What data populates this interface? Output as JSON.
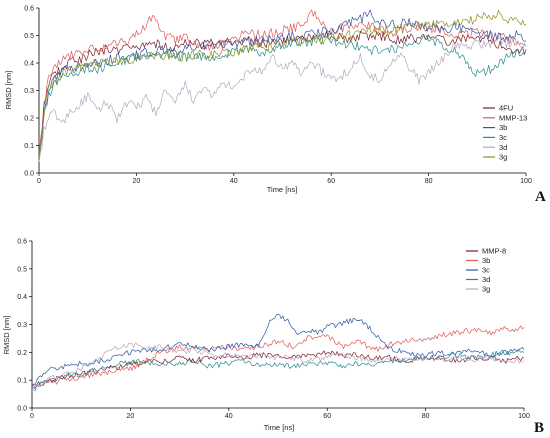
{
  "chart_data": [
    {
      "panel_label": "A",
      "type": "line",
      "xlabel": "Time [ns]",
      "ylabel": "RMSD [nm]",
      "xlim": [
        0,
        100
      ],
      "ylim": [
        0,
        0.6
      ],
      "x_ticks": [
        "0",
        "20",
        "40",
        "60",
        "80",
        "100"
      ],
      "y_ticks": [
        "0.0",
        "0.1",
        "0.2",
        "0.3",
        "0.4",
        "0.5",
        "0.6"
      ],
      "grid": false,
      "legend_position": "right",
      "series": [
        {
          "name": "4FU",
          "color": "#7a1e2c",
          "x": [
            0,
            1,
            2,
            3,
            4,
            5,
            6,
            8,
            10,
            12,
            14,
            16,
            18,
            20,
            22,
            24,
            26,
            28,
            30,
            32,
            35,
            38,
            40,
            43,
            46,
            50,
            53,
            56,
            60,
            63,
            66,
            70,
            73,
            76,
            80,
            83,
            86,
            90,
            93,
            96,
            98,
            100
          ],
          "y": [
            0.05,
            0.24,
            0.32,
            0.36,
            0.37,
            0.38,
            0.4,
            0.41,
            0.43,
            0.44,
            0.45,
            0.45,
            0.46,
            0.46,
            0.47,
            0.47,
            0.46,
            0.46,
            0.47,
            0.47,
            0.47,
            0.47,
            0.48,
            0.48,
            0.47,
            0.48,
            0.49,
            0.49,
            0.5,
            0.49,
            0.5,
            0.5,
            0.48,
            0.49,
            0.49,
            0.48,
            0.48,
            0.5,
            0.47,
            0.46,
            0.44,
            0.45
          ]
        },
        {
          "name": "MMP-13",
          "color": "#e05a5a",
          "x": [
            0,
            1,
            2,
            3,
            4,
            5,
            6,
            8,
            10,
            12,
            14,
            16,
            18,
            20,
            22,
            23,
            24,
            25,
            26,
            28,
            30,
            32,
            35,
            38,
            40,
            43,
            46,
            50,
            53,
            55,
            56,
            58,
            60,
            63,
            66,
            70,
            73,
            76,
            80,
            83,
            86,
            90,
            93,
            96,
            98,
            100
          ],
          "y": [
            0.06,
            0.25,
            0.34,
            0.38,
            0.4,
            0.42,
            0.43,
            0.44,
            0.45,
            0.45,
            0.46,
            0.47,
            0.48,
            0.51,
            0.54,
            0.56,
            0.55,
            0.52,
            0.5,
            0.48,
            0.49,
            0.47,
            0.46,
            0.47,
            0.49,
            0.51,
            0.5,
            0.52,
            0.53,
            0.55,
            0.59,
            0.54,
            0.52,
            0.53,
            0.55,
            0.52,
            0.51,
            0.53,
            0.53,
            0.52,
            0.5,
            0.51,
            0.5,
            0.49,
            0.47,
            0.46
          ]
        },
        {
          "name": "3b",
          "color": "#2b56a8",
          "x": [
            0,
            1,
            2,
            3,
            4,
            5,
            6,
            8,
            10,
            12,
            14,
            16,
            18,
            20,
            22,
            24,
            26,
            28,
            30,
            32,
            35,
            38,
            40,
            43,
            46,
            50,
            53,
            56,
            60,
            63,
            66,
            68,
            70,
            73,
            76,
            80,
            83,
            86,
            90,
            93,
            96,
            98,
            100
          ],
          "y": [
            0.04,
            0.22,
            0.3,
            0.34,
            0.36,
            0.37,
            0.38,
            0.39,
            0.4,
            0.4,
            0.41,
            0.42,
            0.42,
            0.43,
            0.44,
            0.44,
            0.45,
            0.44,
            0.45,
            0.46,
            0.46,
            0.47,
            0.47,
            0.48,
            0.48,
            0.49,
            0.5,
            0.51,
            0.52,
            0.54,
            0.56,
            0.58,
            0.55,
            0.54,
            0.55,
            0.53,
            0.52,
            0.53,
            0.51,
            0.5,
            0.49,
            0.5,
            0.48
          ]
        },
        {
          "name": "3c",
          "color": "#2a8a8c",
          "x": [
            0,
            1,
            2,
            3,
            4,
            5,
            6,
            8,
            10,
            12,
            14,
            16,
            18,
            20,
            22,
            24,
            26,
            28,
            30,
            32,
            35,
            38,
            40,
            43,
            46,
            50,
            53,
            56,
            60,
            63,
            66,
            70,
            73,
            76,
            80,
            83,
            86,
            88,
            90,
            93,
            96,
            98,
            100
          ],
          "y": [
            0.04,
            0.2,
            0.28,
            0.32,
            0.34,
            0.35,
            0.36,
            0.37,
            0.38,
            0.38,
            0.39,
            0.4,
            0.41,
            0.42,
            0.42,
            0.43,
            0.44,
            0.43,
            0.42,
            0.43,
            0.42,
            0.43,
            0.44,
            0.45,
            0.44,
            0.46,
            0.47,
            0.48,
            0.48,
            0.47,
            0.46,
            0.44,
            0.45,
            0.47,
            0.49,
            0.46,
            0.44,
            0.4,
            0.36,
            0.38,
            0.42,
            0.44,
            0.45
          ]
        },
        {
          "name": "3d",
          "color": "#b8a6bd",
          "x": [
            0,
            1,
            2,
            3,
            4,
            5,
            6,
            8,
            10,
            12,
            14,
            16,
            18,
            20,
            22,
            24,
            26,
            28,
            30,
            32,
            34,
            36,
            38,
            40,
            42,
            44,
            46,
            48,
            50,
            52,
            54,
            56,
            58,
            60,
            62,
            64,
            66,
            68,
            70,
            72,
            74,
            76,
            78,
            80,
            82,
            84,
            86,
            88,
            90,
            92,
            94,
            96,
            98,
            100
          ],
          "y": [
            0.04,
            0.15,
            0.2,
            0.22,
            0.2,
            0.18,
            0.22,
            0.24,
            0.28,
            0.22,
            0.26,
            0.2,
            0.25,
            0.24,
            0.27,
            0.22,
            0.3,
            0.25,
            0.32,
            0.26,
            0.31,
            0.28,
            0.33,
            0.3,
            0.35,
            0.38,
            0.36,
            0.42,
            0.38,
            0.4,
            0.36,
            0.41,
            0.37,
            0.34,
            0.35,
            0.38,
            0.42,
            0.36,
            0.33,
            0.4,
            0.44,
            0.38,
            0.34,
            0.36,
            0.4,
            0.44,
            0.47,
            0.45,
            0.48,
            0.46,
            0.49,
            0.47,
            0.48,
            0.46
          ]
        },
        {
          "name": "3g",
          "color": "#8f8f1e",
          "x": [
            0,
            1,
            2,
            3,
            4,
            5,
            6,
            8,
            10,
            12,
            14,
            16,
            18,
            20,
            22,
            24,
            26,
            28,
            30,
            32,
            35,
            38,
            40,
            43,
            46,
            50,
            53,
            56,
            60,
            63,
            66,
            70,
            73,
            76,
            80,
            83,
            86,
            90,
            92,
            94,
            96,
            98,
            100
          ],
          "y": [
            0.05,
            0.22,
            0.3,
            0.33,
            0.35,
            0.36,
            0.37,
            0.38,
            0.39,
            0.4,
            0.4,
            0.41,
            0.41,
            0.42,
            0.42,
            0.43,
            0.42,
            0.43,
            0.42,
            0.43,
            0.43,
            0.44,
            0.44,
            0.45,
            0.46,
            0.47,
            0.48,
            0.48,
            0.49,
            0.5,
            0.51,
            0.52,
            0.52,
            0.53,
            0.54,
            0.54,
            0.55,
            0.56,
            0.57,
            0.58,
            0.56,
            0.55,
            0.54
          ]
        }
      ]
    },
    {
      "panel_label": "B",
      "type": "line",
      "xlabel": "Time [ns]",
      "ylabel": "RMSD [nm]",
      "xlim": [
        0,
        100
      ],
      "ylim": [
        0,
        0.6
      ],
      "x_ticks": [
        "0",
        "20",
        "40",
        "60",
        "80",
        "100"
      ],
      "y_ticks": [
        "0.0",
        "0.1",
        "0.2",
        "0.3",
        "0.4",
        "0.5",
        "0.6"
      ],
      "grid": false,
      "legend_position": "top-right",
      "series": [
        {
          "name": "MMP-8",
          "color": "#7a1e2c",
          "x": [
            0,
            2,
            4,
            6,
            8,
            10,
            12,
            14,
            16,
            18,
            20,
            22,
            24,
            26,
            28,
            30,
            33,
            36,
            40,
            43,
            46,
            50,
            53,
            56,
            60,
            63,
            66,
            70,
            73,
            76,
            80,
            83,
            86,
            90,
            93,
            96,
            100
          ],
          "y": [
            0.08,
            0.09,
            0.1,
            0.11,
            0.12,
            0.12,
            0.13,
            0.14,
            0.14,
            0.15,
            0.16,
            0.16,
            0.17,
            0.17,
            0.17,
            0.18,
            0.17,
            0.18,
            0.19,
            0.18,
            0.19,
            0.19,
            0.18,
            0.19,
            0.2,
            0.19,
            0.19,
            0.18,
            0.18,
            0.17,
            0.18,
            0.18,
            0.17,
            0.18,
            0.18,
            0.17,
            0.18
          ]
        },
        {
          "name": "3b",
          "color": "#e05a5a",
          "x": [
            0,
            2,
            4,
            6,
            8,
            10,
            12,
            14,
            16,
            18,
            20,
            22,
            24,
            26,
            28,
            30,
            33,
            36,
            40,
            43,
            46,
            50,
            53,
            56,
            60,
            63,
            66,
            70,
            73,
            76,
            80,
            83,
            86,
            90,
            93,
            96,
            98,
            100
          ],
          "y": [
            0.08,
            0.09,
            0.09,
            0.1,
            0.1,
            0.11,
            0.12,
            0.12,
            0.13,
            0.14,
            0.14,
            0.16,
            0.18,
            0.2,
            0.21,
            0.22,
            0.22,
            0.21,
            0.22,
            0.21,
            0.22,
            0.24,
            0.22,
            0.25,
            0.26,
            0.22,
            0.24,
            0.21,
            0.23,
            0.24,
            0.25,
            0.26,
            0.27,
            0.28,
            0.27,
            0.29,
            0.28,
            0.29
          ]
        },
        {
          "name": "3c",
          "color": "#2b56a8",
          "x": [
            0,
            2,
            4,
            6,
            8,
            10,
            12,
            14,
            16,
            18,
            20,
            22,
            24,
            26,
            28,
            30,
            33,
            36,
            40,
            43,
            46,
            48,
            50,
            52,
            54,
            56,
            58,
            60,
            62,
            64,
            66,
            68,
            70,
            72,
            74,
            76,
            80,
            83,
            86,
            90,
            93,
            96,
            100
          ],
          "y": [
            0.08,
            0.12,
            0.14,
            0.15,
            0.15,
            0.16,
            0.16,
            0.17,
            0.18,
            0.19,
            0.2,
            0.2,
            0.21,
            0.21,
            0.22,
            0.23,
            0.22,
            0.21,
            0.22,
            0.23,
            0.22,
            0.3,
            0.34,
            0.31,
            0.27,
            0.28,
            0.27,
            0.29,
            0.3,
            0.31,
            0.32,
            0.3,
            0.26,
            0.22,
            0.21,
            0.2,
            0.19,
            0.2,
            0.19,
            0.21,
            0.19,
            0.2,
            0.21
          ]
        },
        {
          "name": "3d",
          "color": "#2a8a8c",
          "x": [
            0,
            2,
            4,
            6,
            8,
            10,
            12,
            14,
            16,
            18,
            20,
            22,
            24,
            26,
            28,
            30,
            33,
            36,
            40,
            43,
            46,
            50,
            53,
            56,
            60,
            63,
            66,
            70,
            73,
            76,
            80,
            83,
            86,
            90,
            93,
            96,
            100
          ],
          "y": [
            0.07,
            0.09,
            0.1,
            0.11,
            0.12,
            0.12,
            0.13,
            0.14,
            0.15,
            0.16,
            0.16,
            0.17,
            0.16,
            0.15,
            0.16,
            0.16,
            0.17,
            0.15,
            0.16,
            0.17,
            0.15,
            0.16,
            0.15,
            0.16,
            0.16,
            0.15,
            0.16,
            0.16,
            0.17,
            0.17,
            0.18,
            0.18,
            0.19,
            0.18,
            0.19,
            0.2,
            0.2
          ]
        },
        {
          "name": "3g",
          "color": "#b8a6bd",
          "x": [
            0,
            2,
            4,
            6,
            8,
            10,
            12,
            14,
            16,
            18,
            20,
            22,
            24,
            26,
            28,
            30,
            33,
            36,
            40,
            43,
            46,
            50,
            53,
            56,
            60,
            63,
            66,
            70,
            73,
            76,
            80,
            83,
            86,
            90,
            93,
            96,
            100
          ],
          "y": [
            0.06,
            0.09,
            0.11,
            0.12,
            0.13,
            0.14,
            0.16,
            0.18,
            0.21,
            0.22,
            0.23,
            0.22,
            0.21,
            0.22,
            0.21,
            0.2,
            0.21,
            0.19,
            0.19,
            0.18,
            0.19,
            0.18,
            0.18,
            0.17,
            0.18,
            0.19,
            0.18,
            0.17,
            0.18,
            0.17,
            0.18,
            0.17,
            0.18,
            0.17,
            0.18,
            0.17,
            0.17
          ]
        }
      ]
    }
  ]
}
